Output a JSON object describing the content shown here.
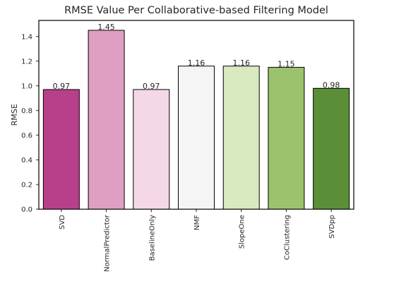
{
  "chart_data": {
    "type": "bar",
    "title": "RMSE Value Per Collaborative-based Filtering Model",
    "xlabel": "",
    "ylabel": "RMSE",
    "ylim": [
      0,
      1.53
    ],
    "yticks": [
      "0.0",
      "0.2",
      "0.4",
      "0.6",
      "0.8",
      "1.0",
      "1.2",
      "1.4"
    ],
    "yticks_values": [
      0,
      0.2,
      0.4,
      0.6,
      0.8,
      1.0,
      1.2,
      1.4
    ],
    "categories": [
      "SVD",
      "NormalPredictor",
      "BaselineOnly",
      "NMF",
      "SlopeOne",
      "CoClustering",
      "SVDpp"
    ],
    "values": [
      0.97,
      1.45,
      0.97,
      1.16,
      1.16,
      1.15,
      0.98
    ],
    "data_labels": [
      "0.97",
      "1.45",
      "0.97",
      "1.16",
      "1.16",
      "1.15",
      "0.98"
    ],
    "colors": [
      "#b8408a",
      "#df9fc3",
      "#f5d8e8",
      "#f5f5f5",
      "#d9e9c0",
      "#9bc36d",
      "#5a8f37"
    ],
    "grid": false,
    "legend": "none"
  }
}
